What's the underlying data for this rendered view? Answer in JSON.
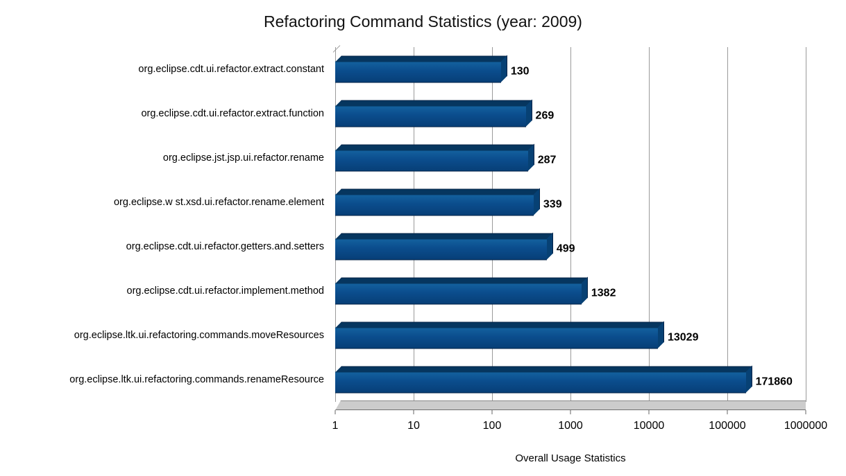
{
  "title": "Refactoring Command Statistics (year: 2009)",
  "chart_data": {
    "type": "bar",
    "orientation": "horizontal",
    "title": "Refactoring Command Statistics (year: 2009)",
    "xlabel": "Overall Usage Statistics",
    "ylabel": "",
    "x_scale": "log",
    "xlim": [
      1,
      1000000
    ],
    "x_ticks": [
      "1",
      "10",
      "100",
      "1000",
      "10000",
      "100000",
      "1000000"
    ],
    "grid": true,
    "legend": "none",
    "categories": [
      "org.eclipse.cdt.ui.refactor.extract.constant",
      "org.eclipse.cdt.ui.refactor.extract.function",
      "org.eclipse.jst.jsp.ui.refactor.rename",
      "org.eclipse.w st.xsd.ui.refactor.rename.element",
      "org.eclipse.cdt.ui.refactor.getters.and.setters",
      "org.eclipse.cdt.ui.refactor.implement.method",
      "org.eclipse.ltk.ui.refactoring.commands.moveResources",
      "org.eclipse.ltk.ui.refactoring.commands.renameResource"
    ],
    "values": [
      130,
      269,
      287,
      339,
      499,
      1382,
      13029,
      171860
    ],
    "value_labels": [
      "130",
      "269",
      "287",
      "339",
      "499",
      "1382",
      "13029",
      "171860"
    ],
    "colors": {
      "bar_front": "#0b4d8d",
      "bar_top": "#06365f",
      "bar_side": "#074174",
      "grid_line": "#9a9a9a",
      "floor": "#cccccc",
      "text": "#000000"
    }
  }
}
